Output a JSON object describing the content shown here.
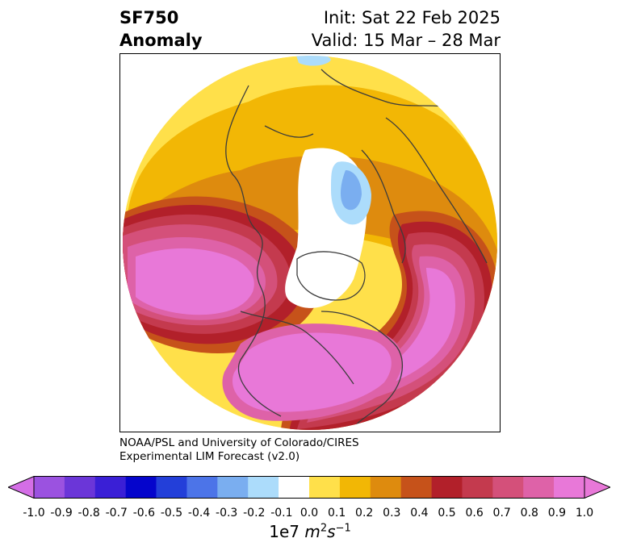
{
  "title": {
    "variable": "SF750",
    "subtitle": "Anomaly",
    "init": "Init: Sat 22 Feb 2025",
    "valid": "Valid: 15 Mar – 28 Mar"
  },
  "credit": {
    "line1": "NOAA/PSL and University of Colorado/CIRES",
    "line2": "Experimental LIM Forecast (v2.0)"
  },
  "colorbar": {
    "ticks": [
      "-1.0",
      "-0.9",
      "-0.8",
      "-0.7",
      "-0.6",
      "-0.5",
      "-0.4",
      "-0.3",
      "-0.2",
      "-0.1",
      "0.0",
      "0.1",
      "0.2",
      "0.3",
      "0.4",
      "0.5",
      "0.6",
      "0.7",
      "0.8",
      "0.9",
      "1.0"
    ],
    "colors": [
      "#9b52e0",
      "#6b36d8",
      "#3a1fd6",
      "#0505cc",
      "#233fd9",
      "#4c74e8",
      "#7aaef0",
      "#acdcfb",
      "#ffffff",
      "#ffe04a",
      "#f2b705",
      "#de8b0e",
      "#c6521a",
      "#b2202a",
      "#c43a4e",
      "#d4507a",
      "#de62a8",
      "#e878d8"
    ],
    "under_color": "#d46ee6",
    "over_color": "#e878d8",
    "label_prefix": "1e7 ",
    "label_unit": "m",
    "label_exp1": "2",
    "label_mid": "s",
    "label_exp2": "−1"
  }
}
